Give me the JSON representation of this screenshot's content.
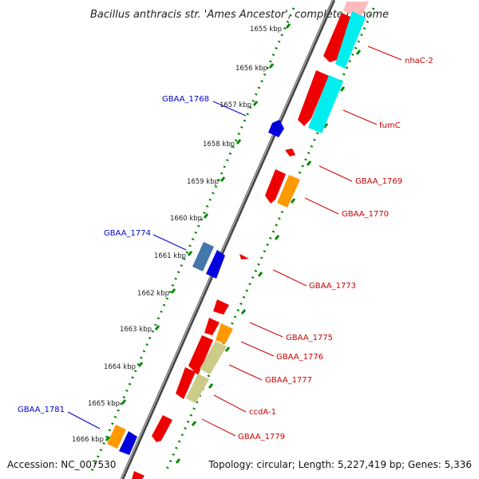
{
  "title": "Bacillus anthracis str. 'Ames Ancestor', complete genome",
  "footer": {
    "accession": "Accession: NC_007530",
    "topology": "Topology: circular; Length: 5,227,419 bp; Genes: 5,336"
  },
  "ticks": [
    {
      "label": "1655 kbp"
    },
    {
      "label": "1656 kbp"
    },
    {
      "label": "1657 kbp"
    },
    {
      "label": "1658 kbp"
    },
    {
      "label": "1659 kbp"
    },
    {
      "label": "1660 kbp"
    },
    {
      "label": "1661 kbp"
    },
    {
      "label": "1662 kbp"
    },
    {
      "label": "1663 kbp"
    },
    {
      "label": "1664 kbp"
    },
    {
      "label": "1665 kbp"
    },
    {
      "label": "1666 kbp"
    }
  ],
  "gene_labels": {
    "nhaC_2": "nhaC-2",
    "fumC": "fumC",
    "gbaa_1769": "GBAA_1769",
    "gbaa_1770": "GBAA_1770",
    "gbaa_1773": "GBAA_1773",
    "gbaa_1775": "GBAA_1775",
    "gbaa_1776": "GBAA_1776",
    "gbaa_1777": "GBAA_1777",
    "ccdA_1": "ccdA-1",
    "gbaa_1779": "GBAA_1779",
    "gbaa_1768": "GBAA_1768",
    "gbaa_1774": "GBAA_1774",
    "gbaa_1781": "GBAA_1781"
  },
  "colors": {
    "forward_label": "#cc0000",
    "reverse_label": "#0000cc",
    "cds_red": "#ee0000",
    "cds_orange": "#ff9900",
    "cds_cyan": "#00eeee",
    "cds_olive": "#cccc88",
    "cds_blue": "#0000dd",
    "cds_steel": "#4477aa",
    "tick_green": "#008800",
    "backbone": "#777777"
  }
}
